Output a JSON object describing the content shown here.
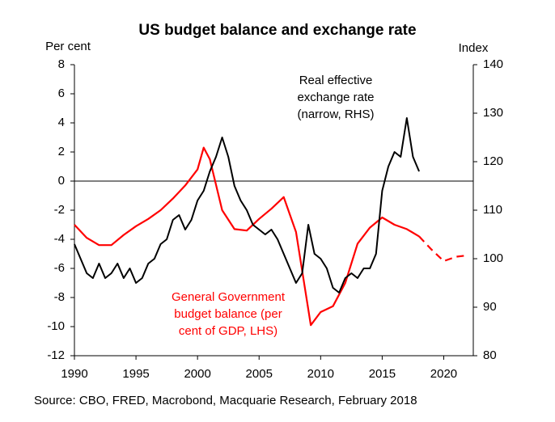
{
  "chart_data": {
    "type": "line",
    "title": "US budget balance and exchange rate",
    "y_label": "Per cent",
    "y2_label": "Index",
    "source": "Source: CBO, FRED, Macrobond, Macquarie Research, February 2018",
    "annotations": [
      {
        "lines": [
          "Real effective",
          "exchange rate",
          "(narrow, RHS)"
        ],
        "color": "#000000"
      },
      {
        "lines": [
          "General Government",
          "budget balance (per",
          "cent of GDP, LHS)"
        ],
        "color": "#ff0000"
      }
    ],
    "xlim": [
      1990,
      2022.4
    ],
    "xticks": [
      1990,
      1995,
      2000,
      2005,
      2010,
      2015,
      2020
    ],
    "ylim": [
      -12,
      8
    ],
    "yticks": [
      -12,
      -10,
      -8,
      -6,
      -4,
      -2,
      0,
      2,
      4,
      6,
      8
    ],
    "y2lim": [
      80,
      140
    ],
    "y2ticks": [
      80,
      90,
      100,
      110,
      120,
      130,
      140
    ],
    "series": [
      {
        "color": "#ff0000",
        "style": "solid",
        "axis": "y",
        "x": [
          1990,
          1991,
          1992,
          1993,
          1994,
          1995,
          1996,
          1997,
          1998,
          1999,
          2000,
          2000.5,
          2001,
          2002,
          2003,
          2004,
          2005,
          2006,
          2007,
          2008,
          2009.2,
          2010,
          2011,
          2012,
          2013,
          2014,
          2015,
          2016,
          2017,
          2018
        ],
        "values": [
          -3,
          -3.9,
          -4.4,
          -4.4,
          -3.7,
          -3.1,
          -2.6,
          -2,
          -1.2,
          -0.3,
          0.8,
          2.3,
          1.5,
          -2,
          -3.3,
          -3.4,
          -2.6,
          -1.9,
          -1.1,
          -3.5,
          -9.9,
          -9,
          -8.6,
          -7,
          -4.3,
          -3.2,
          -2.5,
          -3,
          -3.3,
          -3.8
        ]
      },
      {
        "color": "#ff0000",
        "style": "dashed",
        "axis": "y",
        "x": [
          2018,
          2019,
          2020,
          2021,
          2022
        ],
        "values": [
          -3.8,
          -4.7,
          -5.5,
          -5.2,
          -5.1
        ]
      },
      {
        "color": "#000000",
        "style": "solid",
        "axis": "y2",
        "x": [
          1990,
          1990.5,
          1991,
          1991.5,
          1992,
          1992.5,
          1993,
          1993.5,
          1994,
          1994.5,
          1995,
          1995.5,
          1996,
          1996.5,
          1997,
          1997.5,
          1998,
          1998.5,
          1999,
          1999.5,
          2000,
          2000.5,
          2001,
          2001.5,
          2002,
          2002.5,
          2003,
          2003.5,
          2004,
          2004.5,
          2005,
          2005.5,
          2006,
          2006.5,
          2007,
          2007.5,
          2008,
          2008.5,
          2009,
          2009.5,
          2010,
          2010.5,
          2011,
          2011.5,
          2012,
          2012.5,
          2013,
          2013.5,
          2014,
          2014.5,
          2015,
          2015.5,
          2016,
          2016.5,
          2017,
          2017.5,
          2018
        ],
        "values": [
          103,
          100,
          97,
          96,
          99,
          96,
          97,
          99,
          96,
          98,
          95,
          96,
          99,
          100,
          103,
          104,
          108,
          109,
          106,
          108,
          112,
          114,
          118,
          121,
          125,
          121,
          115,
          112,
          110,
          107,
          106,
          105,
          106,
          104,
          101,
          98,
          95,
          97,
          107,
          101,
          100,
          98,
          94,
          93,
          96,
          97,
          96,
          98,
          98,
          101,
          114,
          119,
          122,
          121,
          129,
          121,
          118
        ]
      }
    ]
  }
}
